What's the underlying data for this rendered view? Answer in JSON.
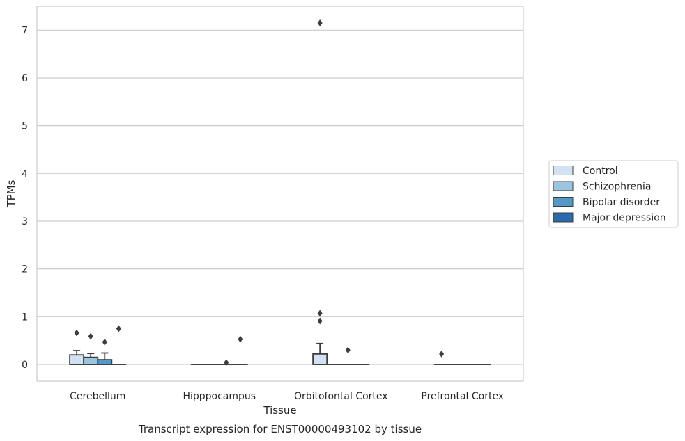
{
  "chart_data": {
    "type": "box",
    "title": "",
    "caption": "Transcript expression for ENST00000493102 by tissue",
    "xlabel": "Tissue",
    "ylabel": "TPMs",
    "ylim": [
      -0.35,
      7.5
    ],
    "yticks": [
      0,
      1,
      2,
      3,
      4,
      5,
      6,
      7
    ],
    "grid": true,
    "legend_position": "right",
    "categories": [
      "Cerebellum",
      "Hipppocampus",
      "Orbitofontal Cortex",
      "Prefrontal Cortex"
    ],
    "series": [
      {
        "name": "Control",
        "color": "#d2e2f2",
        "boxes": [
          {
            "q1": 0.0,
            "median": 0.0,
            "q3": 0.2,
            "whisker_low": 0.0,
            "whisker_high": 0.29,
            "outliers": [
              0.66
            ]
          },
          {
            "q1": 0.0,
            "median": 0.0,
            "q3": 0.0,
            "whisker_low": 0.0,
            "whisker_high": 0.0,
            "outliers": []
          },
          {
            "q1": 0.0,
            "median": 0.0,
            "q3": 0.22,
            "whisker_low": 0.0,
            "whisker_high": 0.44,
            "outliers": [
              0.91,
              1.07,
              7.15
            ]
          },
          {
            "q1": 0.0,
            "median": 0.0,
            "q3": 0.0,
            "whisker_low": 0.0,
            "whisker_high": 0.0,
            "outliers": [
              0.22
            ]
          }
        ]
      },
      {
        "name": "Schizophrenia",
        "color": "#9ac4e0",
        "boxes": [
          {
            "q1": 0.0,
            "median": 0.0,
            "q3": 0.15,
            "whisker_low": 0.0,
            "whisker_high": 0.23,
            "outliers": [
              0.59
            ]
          },
          {
            "q1": 0.0,
            "median": 0.0,
            "q3": 0.0,
            "whisker_low": 0.0,
            "whisker_high": 0.0,
            "outliers": []
          },
          {
            "q1": 0.0,
            "median": 0.0,
            "q3": 0.0,
            "whisker_low": 0.0,
            "whisker_high": 0.0,
            "outliers": []
          },
          {
            "q1": 0.0,
            "median": 0.0,
            "q3": 0.0,
            "whisker_low": 0.0,
            "whisker_high": 0.0,
            "outliers": []
          }
        ]
      },
      {
        "name": "Bipolar disorder",
        "color": "#5299c8",
        "boxes": [
          {
            "q1": 0.0,
            "median": 0.0,
            "q3": 0.1,
            "whisker_low": 0.0,
            "whisker_high": 0.24,
            "outliers": [
              0.47
            ]
          },
          {
            "q1": 0.0,
            "median": 0.0,
            "q3": 0.0,
            "whisker_low": 0.0,
            "whisker_high": 0.0,
            "outliers": [
              0.04
            ]
          },
          {
            "q1": 0.0,
            "median": 0.0,
            "q3": 0.0,
            "whisker_low": 0.0,
            "whisker_high": 0.0,
            "outliers": [
              0.3
            ]
          },
          {
            "q1": 0.0,
            "median": 0.0,
            "q3": 0.0,
            "whisker_low": 0.0,
            "whisker_high": 0.0,
            "outliers": []
          }
        ]
      },
      {
        "name": "Major depression",
        "color": "#2a6aad",
        "boxes": [
          {
            "q1": 0.0,
            "median": 0.0,
            "q3": 0.0,
            "whisker_low": 0.0,
            "whisker_high": 0.0,
            "outliers": [
              0.75
            ]
          },
          {
            "q1": 0.0,
            "median": 0.0,
            "q3": 0.0,
            "whisker_low": 0.0,
            "whisker_high": 0.0,
            "outliers": [
              0.53
            ]
          },
          {
            "q1": 0.0,
            "median": 0.0,
            "q3": 0.0,
            "whisker_low": 0.0,
            "whisker_high": 0.0,
            "outliers": []
          },
          {
            "q1": 0.0,
            "median": 0.0,
            "q3": 0.0,
            "whisker_low": 0.0,
            "whisker_high": 0.0,
            "outliers": []
          }
        ]
      }
    ]
  }
}
